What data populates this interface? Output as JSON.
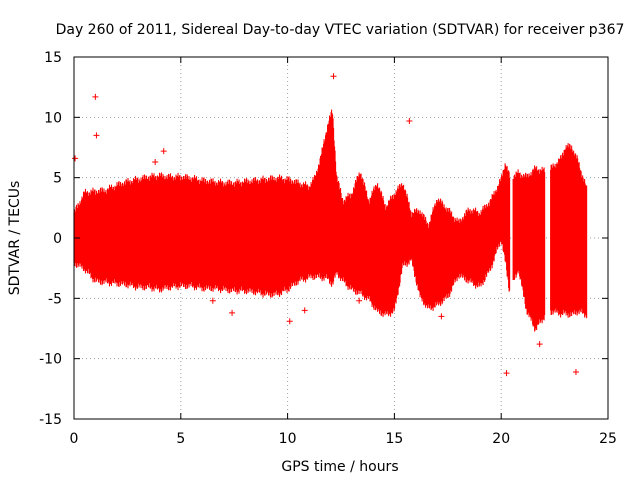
{
  "chart_data": {
    "type": "scatter",
    "title": "Day 260 of 2011, Sidereal Day-to-day VTEC variation (SDTVAR) for receiver p367",
    "xlabel": "GPS time / hours",
    "ylabel": "SDTVAR / TECUs",
    "xlim": [
      0,
      25
    ],
    "ylim": [
      -15,
      15
    ],
    "xticks": [
      "0",
      "5",
      "10",
      "15",
      "20",
      "25"
    ],
    "yticks": [
      "-15",
      "-10",
      "-5",
      "0",
      "5",
      "10",
      "15"
    ],
    "grid": true,
    "marker": "+",
    "series_color": "#ff0000",
    "series": [
      {
        "name": "SDTVAR",
        "envelope": {
          "x": [
            0.0,
            0.5,
            1.0,
            1.5,
            2.0,
            2.5,
            3.0,
            3.5,
            4.0,
            4.5,
            5.0,
            5.5,
            6.0,
            6.5,
            7.0,
            7.5,
            8.0,
            8.5,
            9.0,
            9.5,
            10.0,
            10.5,
            11.0,
            11.3,
            11.6,
            11.9,
            12.1,
            12.3,
            12.6,
            13.0,
            13.4,
            13.8,
            14.2,
            14.6,
            15.0,
            15.4,
            15.8,
            16.2,
            16.6,
            17.0,
            17.5,
            18.0,
            18.5,
            19.0,
            19.5,
            20.0,
            20.2,
            20.4,
            20.8,
            21.2,
            21.6,
            22.0,
            22.4,
            22.8,
            23.0,
            23.3,
            23.6,
            24.0
          ],
          "upper": [
            2.0,
            3.7,
            3.8,
            3.9,
            4.3,
            4.6,
            4.8,
            5.0,
            5.1,
            5.0,
            5.0,
            4.9,
            4.7,
            4.6,
            4.5,
            4.5,
            4.6,
            4.7,
            4.8,
            4.9,
            4.8,
            4.5,
            4.2,
            5.0,
            7.0,
            9.5,
            10.5,
            5.0,
            3.0,
            3.6,
            5.5,
            3.0,
            4.5,
            2.5,
            3.6,
            4.5,
            2.0,
            2.2,
            1.0,
            3.2,
            2.3,
            1.2,
            2.3,
            2.0,
            3.0,
            4.8,
            6.2,
            5.0,
            5.3,
            5.0,
            5.7,
            5.5,
            5.8,
            6.5,
            7.5,
            7.5,
            6.3,
            4.0
          ],
          "lower": [
            -2.0,
            -2.5,
            -3.5,
            -3.6,
            -3.7,
            -3.8,
            -4.0,
            -4.0,
            -4.2,
            -4.0,
            -3.9,
            -3.9,
            -4.1,
            -4.1,
            -4.2,
            -4.3,
            -4.3,
            -4.4,
            -4.6,
            -4.6,
            -4.2,
            -3.5,
            -3.2,
            -3.1,
            -3.2,
            -3.3,
            -3.8,
            -2.8,
            -3.5,
            -4.2,
            -4.5,
            -5.0,
            -6.0,
            -6.3,
            -6.0,
            -2.2,
            -1.8,
            -4.8,
            -5.8,
            -5.5,
            -4.8,
            -3.0,
            -3.5,
            -4.0,
            -2.5,
            0.0,
            -2.0,
            -4.5,
            -2.5,
            -6.0,
            -7.5,
            -6.5,
            -6.0,
            -6.2,
            -6.2,
            -6.3,
            -6.0,
            -6.3
          ]
        },
        "outliers": [
          {
            "x": 0.05,
            "y": 6.6
          },
          {
            "x": 1.0,
            "y": 11.7
          },
          {
            "x": 1.05,
            "y": 8.5
          },
          {
            "x": 3.8,
            "y": 6.3
          },
          {
            "x": 4.2,
            "y": 7.2
          },
          {
            "x": 6.5,
            "y": -5.2
          },
          {
            "x": 7.4,
            "y": -6.2
          },
          {
            "x": 10.1,
            "y": -6.9
          },
          {
            "x": 10.8,
            "y": -6.0
          },
          {
            "x": 12.15,
            "y": 13.4
          },
          {
            "x": 13.35,
            "y": -5.2
          },
          {
            "x": 15.7,
            "y": 9.7
          },
          {
            "x": 17.2,
            "y": -6.5
          },
          {
            "x": 20.25,
            "y": -11.2
          },
          {
            "x": 21.8,
            "y": -8.8
          },
          {
            "x": 23.3,
            "y": 0.3
          },
          {
            "x": 23.5,
            "y": -11.1
          }
        ],
        "gaps": [
          [
            20.4,
            20.55
          ],
          [
            22.05,
            22.3
          ]
        ]
      }
    ]
  }
}
